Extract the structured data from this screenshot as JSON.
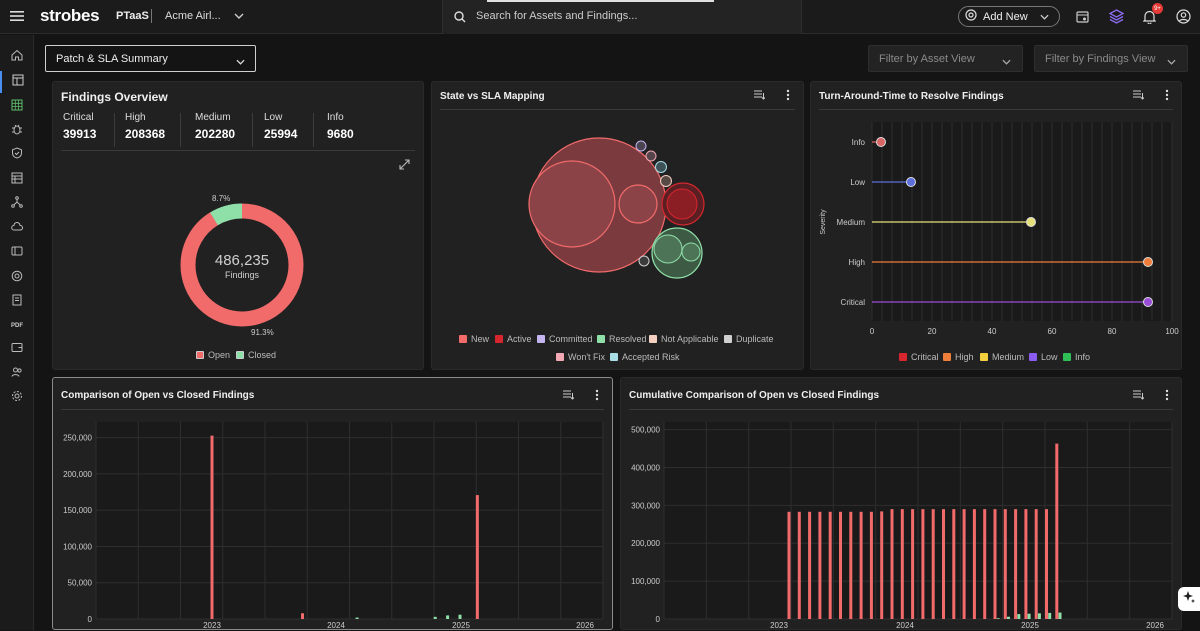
{
  "header": {
    "logo": "strobes",
    "brand": "PTaaS",
    "org": "Acme Airl...",
    "search_placeholder": "Search for Assets and Findings...",
    "add_new_label": "Add New",
    "notification_count": "9+"
  },
  "sidebar": {
    "items": [
      "home-icon",
      "dashboard-icon",
      "grid-icon",
      "bug-icon",
      "shield-icon",
      "table-icon",
      "network-icon",
      "cloud-icon",
      "asset-icon",
      "target-icon",
      "book-icon",
      "pdf-icon",
      "wallet-icon",
      "users-icon",
      "settings-icon"
    ],
    "pdf_label": "PDF"
  },
  "toolbar": {
    "view_label": "Patch & SLA Summary",
    "filter_asset": "Filter by Asset View",
    "filter_findings": "Filter by Findings View"
  },
  "findings_overview": {
    "title": "Findings Overview",
    "stats": [
      {
        "label": "Critical",
        "value": "39913"
      },
      {
        "label": "High",
        "value": "208368"
      },
      {
        "label": "Medium",
        "value": "202280"
      },
      {
        "label": "Low",
        "value": "25994"
      },
      {
        "label": "Info",
        "value": "9680"
      }
    ],
    "donut": {
      "total": "486,235",
      "total_label": "Findings",
      "open_pct": "91.3%",
      "closed_pct": "8.7%",
      "open_fraction": 0.913,
      "open_color": "#f16b6b",
      "closed_color": "#8fdfa9"
    },
    "legend": [
      "Open",
      "Closed"
    ]
  },
  "state_sla": {
    "title": "State vs SLA Mapping",
    "legend": [
      {
        "label": "New",
        "color": "#f16b6b"
      },
      {
        "label": "Active",
        "color": "#d7262e"
      },
      {
        "label": "Committed",
        "color": "#c4b4ef"
      },
      {
        "label": "Resolved",
        "color": "#8fdfa9"
      },
      {
        "label": "Not Applicable",
        "color": "#f5d0c0"
      },
      {
        "label": "Duplicate",
        "color": "#cfcfcf"
      },
      {
        "label": "Won't Fix",
        "color": "#f4a8b3"
      },
      {
        "label": "Accepted Risk",
        "color": "#a8dde6"
      }
    ]
  },
  "tat": {
    "title": "Turn-Around-Time to Resolve Findings",
    "ylabel": "Severity",
    "categories": [
      "Info",
      "Low",
      "Medium",
      "High",
      "Critical"
    ],
    "values": [
      3,
      13,
      53,
      92,
      92
    ],
    "colors": [
      "#d96666",
      "#5c6fdd",
      "#e6e07a",
      "#ee7e3a",
      "#9a4ed8"
    ],
    "xticks": [
      "0",
      "20",
      "40",
      "60",
      "80",
      "100"
    ],
    "legend": [
      {
        "label": "Critical",
        "color": "#d7262e"
      },
      {
        "label": "High",
        "color": "#ee7e3a"
      },
      {
        "label": "Medium",
        "color": "#f4d13c"
      },
      {
        "label": "Low",
        "color": "#8a5cf0"
      },
      {
        "label": "Info",
        "color": "#2fbf57"
      }
    ]
  },
  "chart_data": [
    {
      "type": "bar",
      "title": "Comparison of Open vs Closed Findings",
      "yticks": [
        "250,000",
        "200,000",
        "150,000",
        "100,000",
        "50,000",
        "0"
      ],
      "xticks": [
        "2023",
        "2024",
        "2025",
        "2026"
      ],
      "ylim": [
        0,
        275000
      ],
      "series": [
        {
          "name": "Open",
          "color": "#f16b6b",
          "points": [
            [
              2023.0,
              256000
            ],
            [
              2023.73,
              8000
            ],
            [
              2025.14,
              173000
            ]
          ]
        },
        {
          "name": "Closed",
          "color": "#8fdfa9",
          "points": [
            [
              2024.17,
              2000
            ],
            [
              2024.8,
              3000
            ],
            [
              2024.9,
              5000
            ],
            [
              2025.0,
              6000
            ]
          ]
        }
      ]
    },
    {
      "type": "bar",
      "title": "Cumulative Comparison of Open vs Closed Findings",
      "yticks": [
        "500,000",
        "400,000",
        "300,000",
        "200,000",
        "100,000",
        "0"
      ],
      "xticks": [
        "2023",
        "2024",
        "2025",
        "2026"
      ],
      "ylim": [
        0,
        520000
      ],
      "series": [
        {
          "name": "Open",
          "color": "#f16b6b",
          "values": [
            283000,
            283000,
            283000,
            283000,
            283000,
            283000,
            283000,
            283000,
            283000,
            284000,
            290000,
            290000,
            290000,
            290000,
            290000,
            290000,
            290000,
            290000,
            290000,
            290000,
            290000,
            290000,
            290000,
            290000,
            290000,
            290000,
            463000
          ]
        },
        {
          "name": "Closed",
          "color": "#8fdfa9",
          "values": [
            0,
            0,
            0,
            0,
            0,
            0,
            0,
            0,
            0,
            0,
            0,
            0,
            0,
            0,
            0,
            0,
            0,
            0,
            0,
            0,
            2000,
            6000,
            13000,
            14000,
            15000,
            16000,
            17000
          ]
        }
      ]
    }
  ]
}
